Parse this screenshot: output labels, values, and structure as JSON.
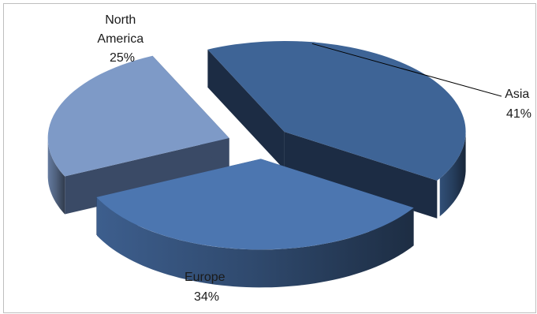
{
  "chart_data": {
    "type": "pie",
    "title": "",
    "slices": [
      {
        "name": "Asia",
        "value": 41,
        "label": "41%",
        "color": "#3e6496",
        "side_color": "#1c2c44"
      },
      {
        "name": "Europe",
        "value": 34,
        "label": "34%",
        "color": "#4c76b0",
        "side_color": "#2e4a73"
      },
      {
        "name": "North America",
        "name_lines": [
          "North",
          "America"
        ],
        "value": 25,
        "label": "25%",
        "color": "#7e9ac7",
        "side_color": "#3a4a66"
      }
    ],
    "exploded": true,
    "three_d": true,
    "legend": "none",
    "data_labels": "category name and percentage"
  }
}
